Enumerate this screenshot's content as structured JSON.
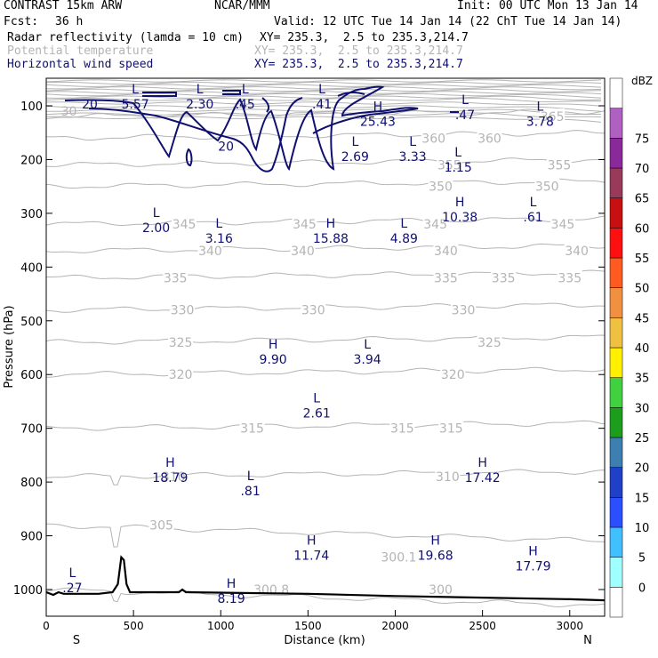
{
  "header": {
    "model": "CONTRAST 15km ARW",
    "org": "NCAR/MMM",
    "init": "Init: 00 UTC Mon 13 Jan 14",
    "fcst_label": "Fcst:",
    "fcst_value": "36 h",
    "valid": "Valid: 12 UTC Tue 14 Jan 14 (22 ChT Tue 14 Jan 14)",
    "fields": [
      {
        "name": "Radar reflectivity (lamda = 10 cm)",
        "xy": "XY= 235.3,  2.5 to 235.3,214.7"
      },
      {
        "name": "Potential temperature",
        "xy": "XY= 235.3,  2.5 to 235.3,214.7"
      },
      {
        "name": "Horizontal wind speed",
        "xy": "XY= 235.3,  2.5 to 235.3,214.7"
      }
    ]
  },
  "colors": {
    "theta": "#b4b4b4",
    "wind": "#101070",
    "terrain": "#000000"
  },
  "chart_data": {
    "type": "cross-section contour",
    "xlabel": "Distance (km)",
    "ylabel": "Pressure (hPa)",
    "xlim": [
      0,
      3200
    ],
    "ylim_pressure": [
      1000,
      80
    ],
    "x_ticks": [
      "0",
      "500",
      "1000",
      "1500",
      "2000",
      "2500",
      "3000"
    ],
    "x_tick_values": [
      0,
      500,
      1000,
      1500,
      2000,
      2500,
      3000
    ],
    "y_ticks": [
      "100",
      "200",
      "300",
      "400",
      "500",
      "600",
      "700",
      "800",
      "900",
      "1000"
    ],
    "y_tick_values": [
      100,
      200,
      300,
      400,
      500,
      600,
      700,
      800,
      900,
      1000
    ],
    "direction_left": "S",
    "direction_right": "N",
    "theta_contours": [
      {
        "label": "300",
        "p": 1000,
        "labels_at": [
          2260
        ]
      },
      {
        "label": "305",
        "p": 880,
        "labels_at": [
          660
        ]
      },
      {
        "label": "310",
        "p": 790,
        "labels_at": [
          730,
          2300
        ]
      },
      {
        "label": "315",
        "p": 700,
        "labels_at": [
          1180,
          2040,
          2320
        ]
      },
      {
        "label": "320",
        "p": 600,
        "labels_at": [
          770,
          2330
        ]
      },
      {
        "label": "325",
        "p": 540,
        "labels_at": [
          770,
          2540
        ]
      },
      {
        "label": "330",
        "p": 480,
        "labels_at": [
          780,
          1530,
          2390
        ]
      },
      {
        "label": "335",
        "p": 420,
        "labels_at": [
          740,
          2290,
          2620,
          3000
        ]
      },
      {
        "label": "340",
        "p": 370,
        "labels_at": [
          940,
          1470,
          2290,
          3040
        ]
      },
      {
        "label": "345",
        "p": 320,
        "labels_at": [
          790,
          1480,
          2230,
          2960
        ]
      },
      {
        "label": "350",
        "p": 250,
        "labels_at": [
          2260,
          2870
        ]
      },
      {
        "label": "355",
        "p": 210,
        "labels_at": [
          2310,
          2940
        ]
      },
      {
        "label": "360",
        "p": 160,
        "labels_at": [
          2220,
          2540
        ]
      },
      {
        "label": "365",
        "p": 120,
        "labels_at": [
          2900
        ]
      }
    ],
    "theta_isolated_labels": [
      {
        "text": "300.1",
        "x": 2020,
        "p": 940
      },
      {
        "text": "300.8",
        "x": 1290,
        "p": 1000
      },
      {
        "text": "30",
        "x": 130,
        "p": 110
      }
    ],
    "wind_contours": [
      {
        "level": "20",
        "labels_at": [
          250,
          1030
        ]
      }
    ],
    "wind_extrema": [
      {
        "type": "L",
        "value": "5.57",
        "x": 510,
        "p": 80
      },
      {
        "type": "L",
        "value": "2.30",
        "x": 880,
        "p": 80
      },
      {
        "type": "L",
        "value": ".45",
        "x": 1140,
        "p": 80
      },
      {
        "type": "L",
        "value": ".41",
        "x": 1580,
        "p": 80
      },
      {
        "type": "H",
        "value": "25.43",
        "x": 1900,
        "p": 112
      },
      {
        "type": "L",
        "value": ".47",
        "x": 2400,
        "p": 100
      },
      {
        "type": "L",
        "value": "3.78",
        "x": 2830,
        "p": 112
      },
      {
        "type": "L",
        "value": "2.69",
        "x": 1770,
        "p": 178
      },
      {
        "type": "L",
        "value": "3.33",
        "x": 2100,
        "p": 178
      },
      {
        "type": "L",
        "value": "1.15",
        "x": 2360,
        "p": 198
      },
      {
        "type": "H",
        "value": "10.38",
        "x": 2370,
        "p": 290
      },
      {
        "type": "L",
        "value": ".61",
        "x": 2790,
        "p": 290
      },
      {
        "type": "L",
        "value": "2.00",
        "x": 630,
        "p": 310
      },
      {
        "type": "L",
        "value": "3.16",
        "x": 990,
        "p": 330
      },
      {
        "type": "H",
        "value": "15.88",
        "x": 1630,
        "p": 330
      },
      {
        "type": "L",
        "value": "4.89",
        "x": 2050,
        "p": 330
      },
      {
        "type": "H",
        "value": "9.90",
        "x": 1300,
        "p": 555
      },
      {
        "type": "L",
        "value": "3.94",
        "x": 1840,
        "p": 555
      },
      {
        "type": "L",
        "value": "2.61",
        "x": 1550,
        "p": 655
      },
      {
        "type": "H",
        "value": "18.79",
        "x": 710,
        "p": 775
      },
      {
        "type": "L",
        "value": ".81",
        "x": 1170,
        "p": 800
      },
      {
        "type": "H",
        "value": "17.42",
        "x": 2500,
        "p": 775
      },
      {
        "type": "H",
        "value": "11.74",
        "x": 1520,
        "p": 920
      },
      {
        "type": "H",
        "value": "19.68",
        "x": 2230,
        "p": 920
      },
      {
        "type": "H",
        "value": "17.79",
        "x": 2790,
        "p": 940
      },
      {
        "type": "L",
        "value": ".27",
        "x": 150,
        "p": 980
      },
      {
        "type": "H",
        "value": "8.19",
        "x": 1060,
        "p": 1000
      }
    ],
    "terrain_surface_pressure": [
      [
        0,
        1005
      ],
      [
        40,
        1010
      ],
      [
        70,
        1005
      ],
      [
        100,
        1008
      ],
      [
        300,
        1008
      ],
      [
        380,
        1005
      ],
      [
        410,
        990
      ],
      [
        430,
        940
      ],
      [
        445,
        945
      ],
      [
        460,
        990
      ],
      [
        480,
        1005
      ],
      [
        760,
        1005
      ],
      [
        780,
        1000
      ],
      [
        800,
        1005
      ],
      [
        1500,
        1008
      ],
      [
        2000,
        1012
      ],
      [
        2500,
        1015
      ],
      [
        3000,
        1018
      ],
      [
        3200,
        1020
      ]
    ],
    "colorbar": {
      "unit": "dBZ",
      "levels": [
        "0",
        "5",
        "10",
        "15",
        "20",
        "25",
        "30",
        "35",
        "40",
        "45",
        "50",
        "55",
        "60",
        "65",
        "70",
        "75"
      ],
      "colors": [
        "#ffffff",
        "#a0ffff",
        "#40c0ff",
        "#2b4fff",
        "#2040c8",
        "#3c7fb0",
        "#1c9e1c",
        "#40d040",
        "#fff000",
        "#f0c040",
        "#f09040",
        "#ff5a20",
        "#ff1010",
        "#c81010",
        "#9a3a5a",
        "#8a2a9a",
        "#b060c0",
        "#ffffff"
      ]
    }
  }
}
